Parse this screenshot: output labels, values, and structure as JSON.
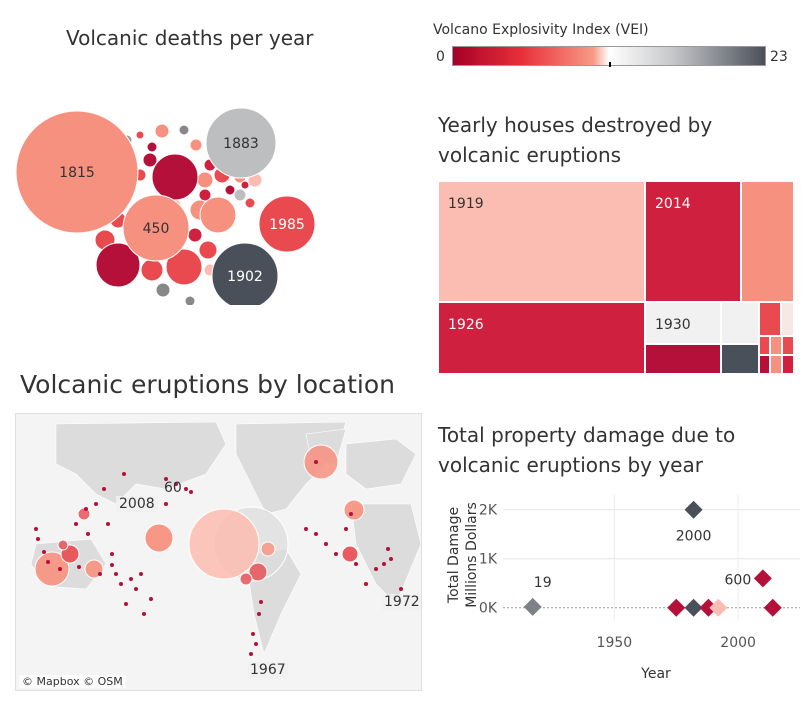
{
  "titles": {
    "deaths": "Volcanic deaths per year",
    "houses": "Yearly houses destroyed by volcanic eruptions",
    "location": "Volcanic eruptions by location",
    "damage": "Total property damage due to volcanic eruptions by year"
  },
  "legend": {
    "title": "Volcano Explosivity Index (VEI)",
    "min": "0",
    "max": "23"
  },
  "colors": {
    "dark_red": "#b5103a",
    "red": "#e84a4f",
    "salmon": "#f7917f",
    "pink": "#fbbcb2",
    "gray": "#bdbebf",
    "dark_gray": "#4a505a",
    "mid_gray": "#7d8288"
  },
  "map": {
    "attribution": "© Mapbox © OSM",
    "labels": [
      "2008",
      "60",
      "1972",
      "1967"
    ]
  },
  "chart_data": [
    {
      "type": "bubble",
      "title": "Volcanic deaths per year",
      "labeled_bubbles": [
        {
          "label": "1815",
          "color": "salmon"
        },
        {
          "label": "1883",
          "color": "gray"
        },
        {
          "label": "450",
          "color": "salmon"
        },
        {
          "label": "1985",
          "color": "red"
        },
        {
          "label": "1902",
          "color": "dark_gray"
        }
      ]
    },
    {
      "type": "treemap",
      "title": "Yearly houses destroyed by volcanic eruptions",
      "labeled_cells": [
        {
          "label": "1919",
          "color": "pink"
        },
        {
          "label": "2014",
          "color": "dark_red"
        },
        {
          "label": "1926",
          "color": "dark_red"
        },
        {
          "label": "1930",
          "color": "white"
        }
      ]
    },
    {
      "type": "scatter",
      "title": "Total property damage due to volcanic eruptions by year",
      "xlabel": "Year",
      "ylabel": "Total Damage Millions Dollars",
      "x_ticks": [
        "1950",
        "2000"
      ],
      "y_ticks": [
        "0K",
        "1K",
        "2K"
      ],
      "xlim": [
        1905,
        2025
      ],
      "ylim": [
        -250,
        2300
      ],
      "points": [
        {
          "x": 1917,
          "y": 19,
          "color": "mid_gray",
          "label": "19"
        },
        {
          "x": 1975,
          "y": 0,
          "color": "dark_red",
          "label": ""
        },
        {
          "x": 1982,
          "y": 2000,
          "color": "dark_gray",
          "label": "2000"
        },
        {
          "x": 1982,
          "y": 0,
          "color": "dark_gray",
          "label": ""
        },
        {
          "x": 1988,
          "y": 0,
          "color": "dark_red",
          "label": ""
        },
        {
          "x": 1992,
          "y": 0,
          "color": "pink",
          "label": ""
        },
        {
          "x": 2010,
          "y": 600,
          "color": "dark_red",
          "label": "600"
        },
        {
          "x": 2014,
          "y": 0,
          "color": "dark_red",
          "label": ""
        }
      ]
    }
  ]
}
